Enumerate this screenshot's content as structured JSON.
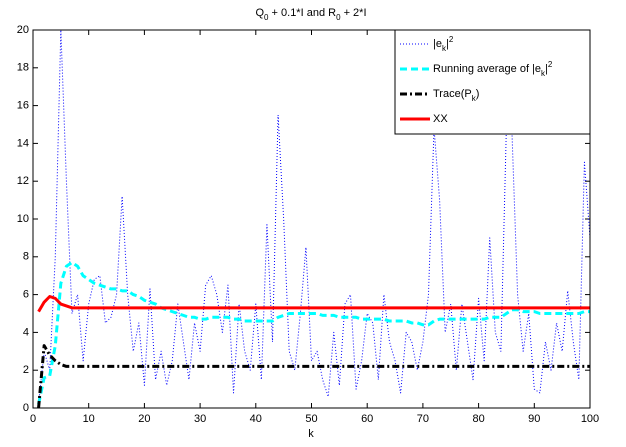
{
  "chart_data": {
    "type": "line",
    "title": "Q_0 + 0.1*I and R_0 + 2*I",
    "xlabel": "k",
    "xlim": [
      0,
      100
    ],
    "ylim": [
      0,
      20
    ],
    "xticks": [
      0,
      10,
      20,
      30,
      40,
      50,
      60,
      70,
      80,
      90,
      100
    ],
    "yticks": [
      0,
      2,
      4,
      6,
      8,
      10,
      12,
      14,
      16,
      18,
      20
    ],
    "legend": "upper right",
    "x": [
      1,
      2,
      3,
      4,
      5,
      6,
      7,
      8,
      9,
      10,
      11,
      12,
      13,
      14,
      15,
      16,
      17,
      18,
      19,
      20,
      21,
      22,
      23,
      24,
      25,
      26,
      27,
      28,
      29,
      30,
      31,
      32,
      33,
      34,
      35,
      36,
      37,
      38,
      39,
      40,
      41,
      42,
      43,
      44,
      45,
      46,
      47,
      48,
      49,
      50,
      51,
      52,
      53,
      54,
      55,
      56,
      57,
      58,
      59,
      60,
      61,
      62,
      63,
      64,
      65,
      66,
      67,
      68,
      69,
      70,
      71,
      72,
      73,
      74,
      75,
      76,
      77,
      78,
      79,
      80,
      81,
      82,
      83,
      84,
      85,
      86,
      87,
      88,
      89,
      90,
      91,
      92,
      93,
      94,
      95,
      96,
      97,
      98,
      99,
      100
    ],
    "series": [
      {
        "name": "|e_k|^2",
        "color": "#0000ff",
        "style": "dotted",
        "values": [
          0.2,
          3.0,
          2.0,
          8,
          20,
          12,
          5,
          6,
          2.5,
          5.5,
          6.8,
          7,
          4.5,
          4.8,
          6,
          11.2,
          6,
          3,
          4.5,
          1.2,
          6.3,
          1.5,
          3,
          1.2,
          2.5,
          5.5,
          3.5,
          1.5,
          4.5,
          3,
          6.5,
          7,
          6,
          4,
          6.5,
          0.8,
          5.5,
          3,
          2,
          5.5,
          1.5,
          9.7,
          3.5,
          15.5,
          10,
          3,
          2,
          5,
          8.5,
          2.5,
          3,
          1.5,
          0.6,
          4,
          1.2,
          5.5,
          6,
          1,
          2.5,
          5,
          4.5,
          1.5,
          6,
          3.5,
          2.5,
          0.8,
          4,
          3.5,
          2,
          3.5,
          6,
          14.8,
          11,
          4,
          5.5,
          2,
          5.5,
          3.5,
          1.5,
          5.8,
          2.5,
          9,
          4,
          3,
          15,
          14.5,
          6,
          3,
          5,
          1,
          0.8,
          3.5,
          2,
          4.5,
          3,
          6.2,
          3.5,
          1.5,
          13,
          9
        ]
      },
      {
        "name": "Running average of |e_k|^2",
        "color": "#00ffff",
        "style": "dashed",
        "values": [
          0.2,
          1.6,
          1.7,
          3.3,
          6.6,
          7.5,
          7.7,
          7.5,
          7.0,
          6.8,
          6.6,
          6.5,
          6.4,
          6.3,
          6.3,
          6.2,
          6.2,
          6.0,
          5.9,
          5.7,
          5.6,
          5.5,
          5.3,
          5.2,
          5.1,
          5.0,
          4.9,
          4.8,
          4.8,
          4.7,
          4.7,
          4.8,
          4.8,
          4.8,
          4.8,
          4.7,
          4.7,
          4.6,
          4.6,
          4.6,
          4.6,
          4.6,
          4.6,
          4.8,
          4.9,
          5.0,
          5.0,
          5.0,
          5.0,
          5.0,
          5.0,
          4.9,
          4.9,
          4.9,
          4.8,
          4.8,
          4.8,
          4.8,
          4.7,
          4.7,
          4.7,
          4.7,
          4.7,
          4.6,
          4.6,
          4.6,
          4.6,
          4.5,
          4.5,
          4.4,
          4.4,
          4.6,
          4.7,
          4.7,
          4.7,
          4.7,
          4.7,
          4.7,
          4.7,
          4.7,
          4.7,
          4.8,
          4.8,
          4.8,
          5.0,
          5.2,
          5.2,
          5.1,
          5.1,
          5.1,
          5.0,
          5.0,
          5.0,
          5.0,
          5.0,
          5.0,
          5.0,
          5.0,
          5.1,
          5.1
        ]
      },
      {
        "name": "Trace(P_k)",
        "color": "#000000",
        "style": "dashdot",
        "values": [
          0,
          3.3,
          2.8,
          2.5,
          2.3,
          2.2,
          2.2,
          2.2,
          2.2,
          2.2,
          2.2,
          2.2,
          2.2,
          2.2,
          2.2,
          2.2,
          2.2,
          2.2,
          2.2,
          2.2,
          2.2,
          2.2,
          2.2,
          2.2,
          2.2,
          2.2,
          2.2,
          2.2,
          2.2,
          2.2,
          2.2,
          2.2,
          2.2,
          2.2,
          2.2,
          2.2,
          2.2,
          2.2,
          2.2,
          2.2,
          2.2,
          2.2,
          2.2,
          2.2,
          2.2,
          2.2,
          2.2,
          2.2,
          2.2,
          2.2,
          2.2,
          2.2,
          2.2,
          2.2,
          2.2,
          2.2,
          2.2,
          2.2,
          2.2,
          2.2,
          2.2,
          2.2,
          2.2,
          2.2,
          2.2,
          2.2,
          2.2,
          2.2,
          2.2,
          2.2,
          2.2,
          2.2,
          2.2,
          2.2,
          2.2,
          2.2,
          2.2,
          2.2,
          2.2,
          2.2,
          2.2,
          2.2,
          2.2,
          2.2,
          2.2,
          2.2,
          2.2,
          2.2,
          2.2,
          2.2,
          2.2,
          2.2,
          2.2,
          2.2,
          2.2,
          2.2,
          2.2,
          2.2,
          2.2,
          2.2
        ]
      },
      {
        "name": "XX",
        "color": "#ff0000",
        "style": "solid",
        "values": [
          5.1,
          5.6,
          5.9,
          5.8,
          5.5,
          5.4,
          5.3,
          5.3,
          5.3,
          5.3,
          5.3,
          5.3,
          5.3,
          5.3,
          5.3,
          5.3,
          5.3,
          5.3,
          5.3,
          5.3,
          5.3,
          5.3,
          5.3,
          5.3,
          5.3,
          5.3,
          5.3,
          5.3,
          5.3,
          5.3,
          5.3,
          5.3,
          5.3,
          5.3,
          5.3,
          5.3,
          5.3,
          5.3,
          5.3,
          5.3,
          5.3,
          5.3,
          5.3,
          5.3,
          5.3,
          5.3,
          5.3,
          5.3,
          5.3,
          5.3,
          5.3,
          5.3,
          5.3,
          5.3,
          5.3,
          5.3,
          5.3,
          5.3,
          5.3,
          5.3,
          5.3,
          5.3,
          5.3,
          5.3,
          5.3,
          5.3,
          5.3,
          5.3,
          5.3,
          5.3,
          5.3,
          5.3,
          5.3,
          5.3,
          5.3,
          5.3,
          5.3,
          5.3,
          5.3,
          5.3,
          5.3,
          5.3,
          5.3,
          5.3,
          5.3,
          5.3,
          5.3,
          5.3,
          5.3,
          5.3,
          5.3,
          5.3,
          5.3,
          5.3,
          5.3,
          5.3,
          5.3,
          5.3,
          5.3,
          5.3
        ]
      }
    ]
  }
}
